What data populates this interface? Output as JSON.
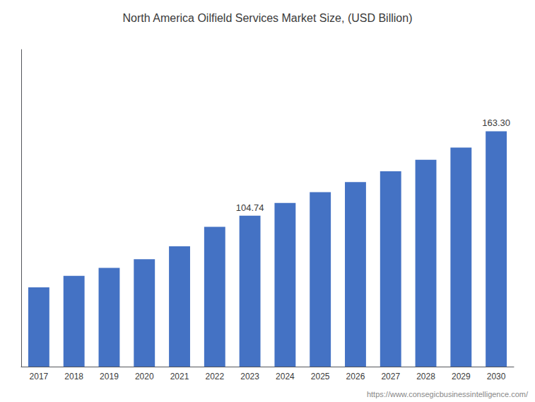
{
  "chart_data": {
    "type": "bar",
    "title": "North America Oilfield Services Market Size, (USD Billion)",
    "categories": [
      "2017",
      "2018",
      "2019",
      "2020",
      "2021",
      "2022",
      "2023",
      "2024",
      "2025",
      "2026",
      "2027",
      "2028",
      "2029",
      "2030"
    ],
    "values": [
      55.0,
      63.0,
      68.5,
      74.5,
      83.5,
      97.0,
      104.74,
      113.5,
      121.0,
      128.0,
      135.5,
      143.5,
      152.0,
      163.3
    ],
    "color": "#4472C4",
    "ylim": [
      0,
      220
    ],
    "tick_labels": "x",
    "grid": false,
    "annotations": [
      {
        "category": "2023",
        "value": 104.74,
        "text": "104.74"
      },
      {
        "category": "2030",
        "value": 163.3,
        "text": "163.30"
      },
      {
        "text": "https://www.consegicbusinessintelligence.com/"
      }
    ]
  }
}
